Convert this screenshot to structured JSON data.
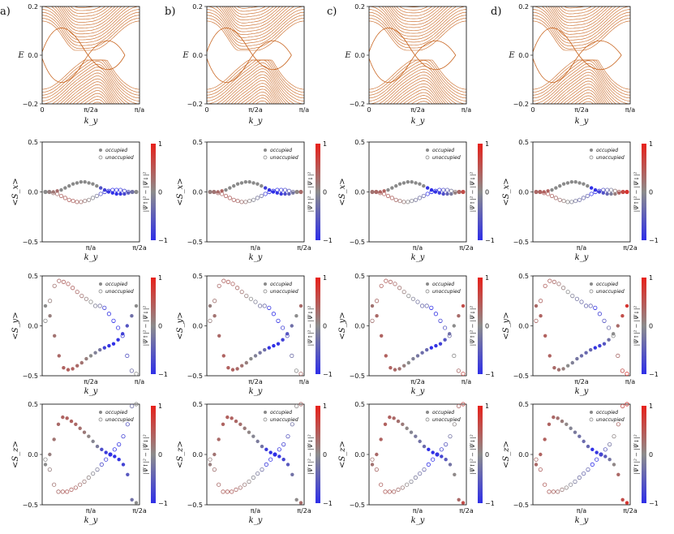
{
  "figure": {
    "panel_labels": [
      "a)",
      "b)",
      "c)",
      "d)"
    ],
    "legend_occupied": "occupied",
    "legend_unoccupied": "unoccupied",
    "colorbar_label": "|Ψ↑|² − |Ψ↓|²",
    "colorbar_ticks": [
      "1",
      "0",
      "−1"
    ],
    "colors": {
      "bands": "#c8641e",
      "occupied": "#8a8a8a",
      "unoccupied": "#7a7a7a",
      "cmap_top": "#e8201a",
      "cmap_mid": "#8c8c8c",
      "cmap_bottom": "#2f2fe8"
    }
  },
  "chart_data": [
    {
      "type": "band-structure",
      "row": 0,
      "title": "",
      "xlabel": "k_y",
      "ylabel": "E",
      "ylim": [
        -0.2,
        0.2
      ],
      "yticks": [
        "0.2",
        "0.0",
        "−0.2"
      ],
      "xticks": [
        "0",
        "π/2a",
        "π/a"
      ],
      "columns": [
        {
          "label": "a)",
          "node_shift": 0.0,
          "bump_right": 0.65
        },
        {
          "label": "b)",
          "node_shift": 0.02,
          "bump_right": 0.75
        },
        {
          "label": "c)",
          "node_shift": 0.04,
          "bump_right": 0.5
        },
        {
          "label": "d)",
          "node_shift": 0.06,
          "bump_right": 0.7
        }
      ]
    },
    {
      "type": "scatter",
      "row": 1,
      "component": "x",
      "ylabel": "<S_x>",
      "xlabel": "k_y",
      "ylim": [
        -0.5,
        0.5
      ],
      "yticks": [
        "0.5",
        "0.0",
        "−0.5"
      ],
      "xticks": [
        "π/a",
        "π/2a"
      ],
      "series": [
        {
          "name": "occupied",
          "values": [
            0.0,
            0.0,
            0.0,
            0.01,
            0.02,
            0.04,
            0.06,
            0.08,
            0.09,
            0.1,
            0.1,
            0.09,
            0.08,
            0.06,
            0.04,
            0.02,
            0.0,
            -0.01,
            -0.02,
            -0.02,
            -0.02,
            -0.01,
            0.0,
            0.0
          ]
        },
        {
          "name": "unoccupied",
          "values": [
            0.0,
            0.0,
            -0.01,
            -0.02,
            -0.04,
            -0.06,
            -0.08,
            -0.09,
            -0.1,
            -0.1,
            -0.09,
            -0.08,
            -0.06,
            -0.04,
            -0.02,
            0.0,
            0.01,
            0.02,
            0.02,
            0.02,
            0.01,
            0.0,
            0.0,
            0.0
          ]
        }
      ]
    },
    {
      "type": "scatter",
      "row": 2,
      "component": "y",
      "ylabel": "<S_y>",
      "xlabel": "k_y",
      "ylim": [
        -0.5,
        0.5
      ],
      "yticks": [
        "0.5",
        "0.0",
        "−0.5"
      ],
      "xticks": [
        "π/2a",
        "π/a"
      ],
      "series": [
        {
          "name": "occupied",
          "values": [
            0.2,
            0.1,
            -0.1,
            -0.3,
            -0.42,
            -0.44,
            -0.43,
            -0.4,
            -0.37,
            -0.33,
            -0.3,
            -0.27,
            -0.24,
            -0.22,
            -0.2,
            -0.18,
            -0.14,
            -0.08,
            0.0,
            0.1,
            0.2
          ]
        },
        {
          "name": "unoccupied",
          "values": [
            0.05,
            0.25,
            0.4,
            0.45,
            0.44,
            0.42,
            0.38,
            0.34,
            0.3,
            0.27,
            0.24,
            0.2,
            0.2,
            0.18,
            0.12,
            0.05,
            -0.02,
            -0.1,
            -0.3,
            -0.45,
            -0.48
          ]
        }
      ]
    },
    {
      "type": "scatter",
      "row": 3,
      "component": "z",
      "ylabel": "<S_z>",
      "xlabel": "k_y",
      "ylim": [
        -0.5,
        0.5
      ],
      "yticks": [
        "0.5",
        "0.0",
        "−0.5"
      ],
      "xticks": [
        "π/a",
        "π/2a"
      ],
      "series": [
        {
          "name": "occupied",
          "values": [
            -0.1,
            0.0,
            0.15,
            0.3,
            0.37,
            0.36,
            0.33,
            0.3,
            0.26,
            0.22,
            0.18,
            0.13,
            0.08,
            0.05,
            0.02,
            0.0,
            -0.02,
            -0.05,
            -0.1,
            -0.2,
            -0.45,
            -0.48
          ]
        },
        {
          "name": "unoccupied",
          "values": [
            -0.05,
            -0.15,
            -0.3,
            -0.37,
            -0.37,
            -0.37,
            -0.35,
            -0.33,
            -0.3,
            -0.27,
            -0.23,
            -0.19,
            -0.15,
            -0.1,
            -0.05,
            0.0,
            0.05,
            0.1,
            0.18,
            0.3,
            0.48,
            0.5
          ]
        }
      ]
    }
  ]
}
